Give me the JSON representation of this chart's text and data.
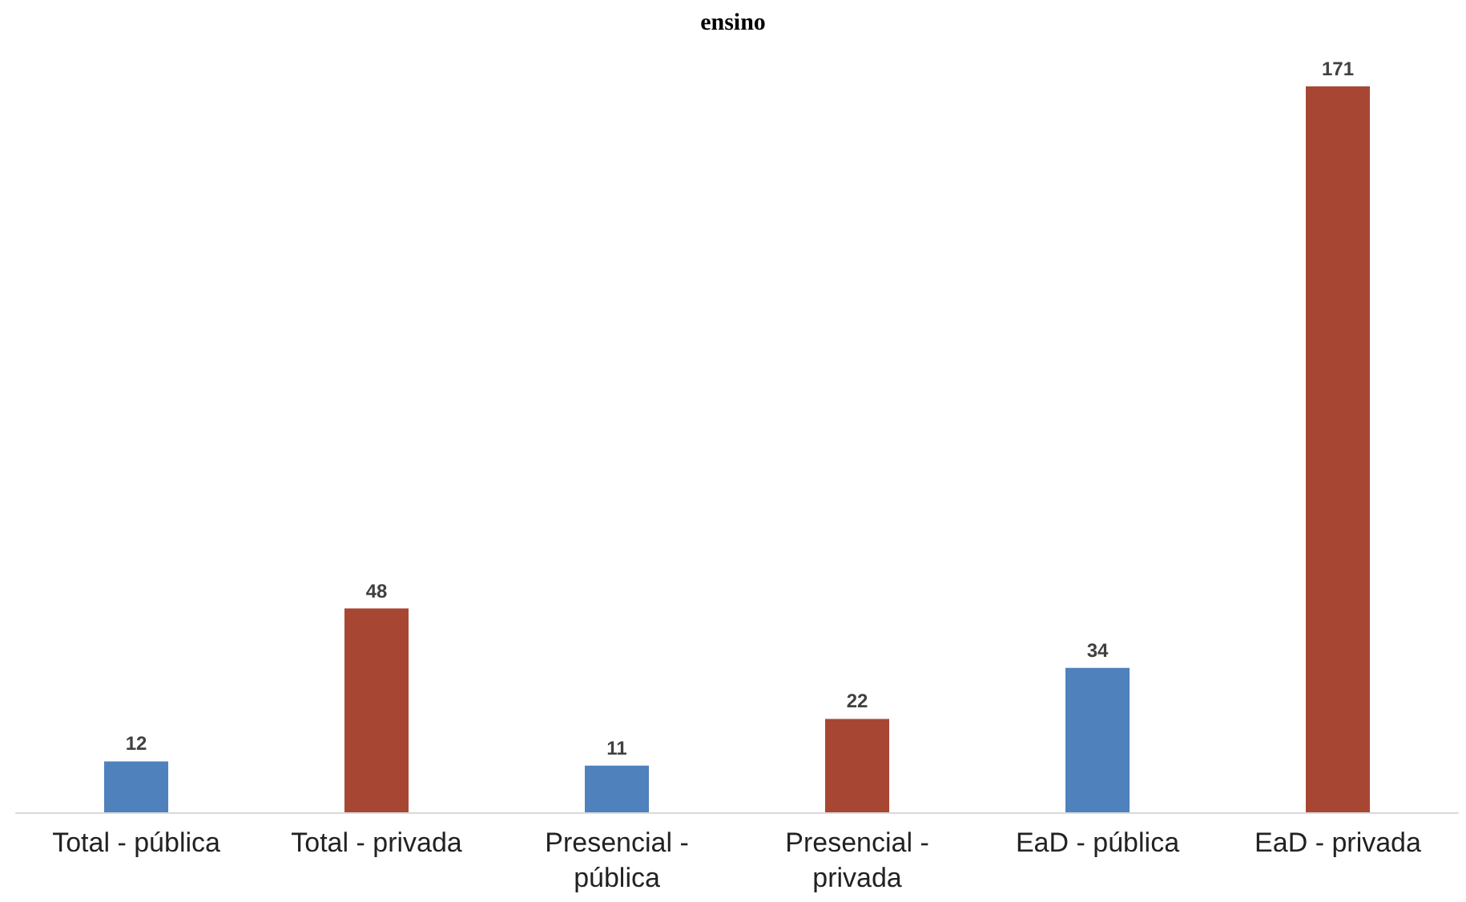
{
  "chart_data": {
    "type": "bar",
    "title": "ensino",
    "categories": [
      "Total - pública",
      "Total - privada",
      "Presencial - pública",
      "Presencial - privada",
      "EaD - pública",
      "EaD - privada"
    ],
    "values": [
      12,
      48,
      11,
      22,
      34,
      171
    ],
    "colors": [
      "#4f81bd",
      "#a84634",
      "#4f81bd",
      "#a84634",
      "#4f81bd",
      "#a84634"
    ],
    "data_labels": true
  }
}
